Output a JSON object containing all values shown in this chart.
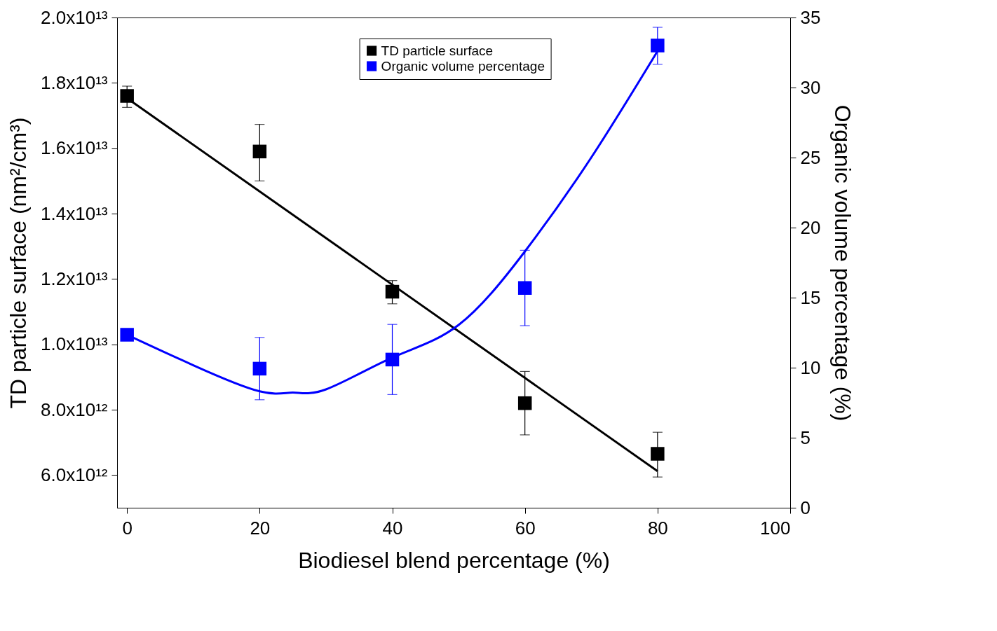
{
  "chart_data": {
    "type": "scatter",
    "xlabel": "Biodiesel blend percentage (%)",
    "ylabel": "TD particle surface (nm²/cm³)",
    "y2label": "Organic volume percentage (%)",
    "xlim": [
      -1.5,
      100
    ],
    "xticks": [
      0,
      20,
      40,
      60,
      80,
      100
    ],
    "ylim": [
      5000000000000.0,
      20000000000000.0
    ],
    "yticks": [
      {
        "value": 6000000000000.0,
        "label": "6.0x10¹²"
      },
      {
        "value": 8000000000000.0,
        "label": "8.0x10¹²"
      },
      {
        "value": 10000000000000.0,
        "label": "1.0x10¹³"
      },
      {
        "value": 12000000000000.0,
        "label": "1.2x10¹³"
      },
      {
        "value": 14000000000000.0,
        "label": "1.4x10¹³"
      },
      {
        "value": 16000000000000.0,
        "label": "1.6x10¹³"
      },
      {
        "value": 18000000000000.0,
        "label": "1.8x10¹³"
      },
      {
        "value": 20000000000000.0,
        "label": "2.0x10¹³"
      }
    ],
    "y2lim": [
      0,
      35
    ],
    "y2ticks": [
      0,
      5,
      10,
      15,
      20,
      25,
      30,
      35
    ],
    "grid": false,
    "legend": "top",
    "marker": "square",
    "series": [
      {
        "name": "TD particle surface",
        "color": "#000000",
        "x": [
          0,
          20,
          40,
          60,
          80
        ],
        "values": [
          17600000000000.0,
          15900000000000.0,
          11610000000000.0,
          8200000000000.0,
          6650000000000.0
        ],
        "errors": [
          [
            17250000000000.0,
            17900000000000.0
          ],
          [
            15000000000000.0,
            16730000000000.0
          ],
          [
            11240000000000.0,
            11950000000000.0
          ],
          [
            7230000000000.0,
            9170000000000.0
          ],
          [
            5940000000000.0,
            7310000000000.0
          ]
        ]
      },
      {
        "type": "line",
        "color": "#000000",
        "line_style": "solid",
        "marker": "none",
        "x": [
          0,
          80
        ],
        "values": [
          17530000000000.0,
          6120000000000.0
        ]
      },
      {
        "name": "Organic volume percentage",
        "color": "#0000ff",
        "axis": "y2",
        "x": [
          0,
          20,
          40,
          60,
          80
        ],
        "values": [
          12.35,
          9.93,
          10.58,
          15.69,
          33.0
        ],
        "errors": [
          null,
          [
            7.71,
            12.16
          ],
          [
            8.08,
            13.09
          ],
          [
            13.0,
            18.38
          ],
          [
            31.66,
            34.3
          ]
        ]
      },
      {
        "type": "line",
        "color": "#0000ff",
        "axis": "y2",
        "line_style": "solid",
        "marker": "none",
        "x": [
          0,
          10,
          20,
          25,
          30,
          40,
          50,
          60,
          70,
          80
        ],
        "values": [
          12.35,
          10.17,
          8.31,
          8.22,
          8.45,
          10.72,
          13.05,
          18.3,
          25.0,
          32.6
        ]
      }
    ]
  }
}
